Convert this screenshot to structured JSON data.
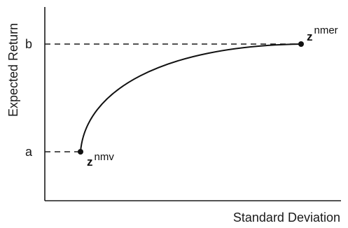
{
  "axes": {
    "x_label": "Standard Deviation",
    "y_label": "Expected Return"
  },
  "y_ticks": {
    "a": "a",
    "b": "b"
  },
  "points": {
    "start": {
      "base": "z",
      "superscript": "nmv"
    },
    "end": {
      "base": "z",
      "superscript": "nmer"
    }
  },
  "colors": {
    "ink": "#1a1a1a",
    "background": "#ffffff"
  }
}
